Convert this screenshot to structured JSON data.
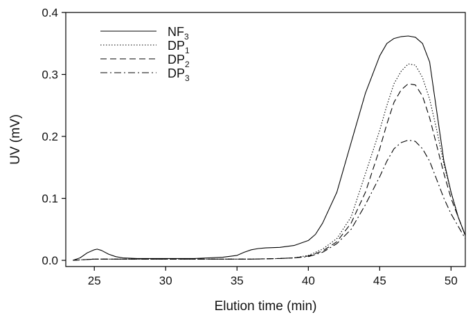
{
  "chart_data": {
    "type": "line",
    "xlabel": "Elution time (min)",
    "ylabel": "UV (mV)",
    "xlim": [
      23,
      51
    ],
    "ylim": [
      -0.01,
      0.4
    ],
    "xticks": [
      25,
      30,
      35,
      40,
      45,
      50
    ],
    "yticks": [
      0.0,
      0.1,
      0.2,
      0.3,
      0.4
    ],
    "xtick_labels": [
      "25",
      "30",
      "35",
      "40",
      "45",
      "50"
    ],
    "ytick_labels": [
      "0.0",
      "0.1",
      "0.2",
      "0.3",
      "0.4"
    ],
    "grid": false,
    "legend_position": "top-left",
    "series": [
      {
        "name": "NF3",
        "label_main": "NF",
        "label_sub": "3",
        "color": "#000000",
        "dash": "solid",
        "x": [
          23.5,
          24.0,
          24.5,
          25.0,
          25.2,
          25.5,
          26.0,
          26.5,
          27.0,
          28.0,
          30.0,
          32.0,
          33.0,
          34.0,
          35.0,
          35.5,
          36.0,
          36.5,
          37.0,
          38.0,
          39.0,
          40.0,
          40.5,
          41.0,
          42.0,
          43.0,
          44.0,
          45.0,
          45.5,
          46.0,
          46.5,
          47.0,
          47.5,
          48.0,
          48.5,
          49.0,
          49.5,
          50.0,
          50.5,
          51.0
        ],
        "y": [
          0.0,
          0.004,
          0.012,
          0.017,
          0.018,
          0.016,
          0.01,
          0.006,
          0.004,
          0.003,
          0.003,
          0.003,
          0.004,
          0.005,
          0.008,
          0.013,
          0.017,
          0.019,
          0.02,
          0.021,
          0.024,
          0.032,
          0.042,
          0.06,
          0.11,
          0.19,
          0.27,
          0.33,
          0.35,
          0.358,
          0.361,
          0.362,
          0.36,
          0.35,
          0.32,
          0.24,
          0.16,
          0.11,
          0.07,
          0.04
        ]
      },
      {
        "name": "DP1",
        "label_main": "DP",
        "label_sub": "1",
        "color": "#000000",
        "dash": "dotted",
        "x": [
          23.5,
          25.0,
          26.0,
          28.0,
          30.0,
          32.0,
          34.0,
          36.0,
          38.0,
          39.0,
          40.0,
          41.0,
          42.0,
          43.0,
          44.0,
          45.0,
          45.5,
          46.0,
          46.5,
          47.0,
          47.5,
          48.0,
          48.5,
          49.0,
          49.5,
          50.0,
          50.5,
          51.0
        ],
        "y": [
          0.0,
          0.002,
          0.002,
          0.002,
          0.002,
          0.002,
          0.002,
          0.002,
          0.003,
          0.004,
          0.008,
          0.018,
          0.035,
          0.07,
          0.14,
          0.21,
          0.25,
          0.285,
          0.305,
          0.317,
          0.315,
          0.295,
          0.26,
          0.21,
          0.155,
          0.11,
          0.07,
          0.04
        ]
      },
      {
        "name": "DP2",
        "label_main": "DP",
        "label_sub": "2",
        "color": "#000000",
        "dash": "dashed",
        "x": [
          23.5,
          25.0,
          26.0,
          28.0,
          30.0,
          32.0,
          34.0,
          36.0,
          38.0,
          39.0,
          40.0,
          41.0,
          42.0,
          43.0,
          44.0,
          45.0,
          45.5,
          46.0,
          46.5,
          47.0,
          47.5,
          48.0,
          48.5,
          49.0,
          49.5,
          50.0,
          50.5,
          51.0
        ],
        "y": [
          0.0,
          0.002,
          0.002,
          0.002,
          0.002,
          0.002,
          0.002,
          0.002,
          0.003,
          0.004,
          0.007,
          0.015,
          0.03,
          0.06,
          0.11,
          0.18,
          0.22,
          0.255,
          0.275,
          0.285,
          0.283,
          0.265,
          0.23,
          0.185,
          0.14,
          0.1,
          0.07,
          0.04
        ]
      },
      {
        "name": "DP3",
        "label_main": "DP",
        "label_sub": "3",
        "color": "#000000",
        "dash": "dashdot",
        "x": [
          23.5,
          25.0,
          26.0,
          28.0,
          30.0,
          32.0,
          34.0,
          36.0,
          38.0,
          39.0,
          40.0,
          41.0,
          42.0,
          43.0,
          44.0,
          45.0,
          45.5,
          46.0,
          46.5,
          47.0,
          47.5,
          48.0,
          48.5,
          49.0,
          49.5,
          50.0,
          50.5,
          51.0
        ],
        "y": [
          0.0,
          0.002,
          0.002,
          0.002,
          0.002,
          0.002,
          0.002,
          0.002,
          0.003,
          0.004,
          0.006,
          0.013,
          0.027,
          0.05,
          0.09,
          0.135,
          0.16,
          0.18,
          0.19,
          0.194,
          0.192,
          0.18,
          0.16,
          0.13,
          0.1,
          0.075,
          0.055,
          0.035
        ]
      }
    ]
  }
}
